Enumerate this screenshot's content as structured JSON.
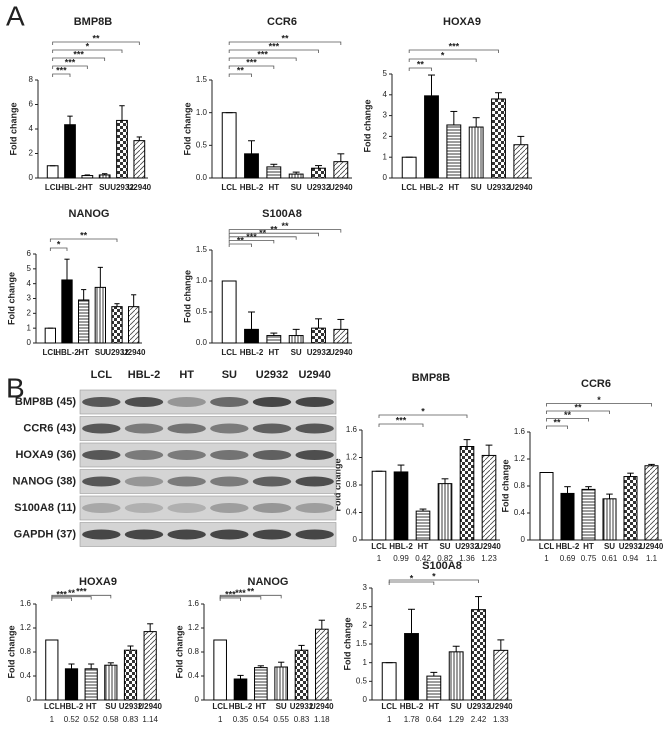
{
  "panel_labels": {
    "a": "A",
    "b": "B"
  },
  "blot": {
    "columns": [
      "LCL",
      "HBL-2",
      "HT",
      "SU",
      "U2932",
      "U2940"
    ],
    "rows": [
      "BMP8B (45)",
      "CCR6 (43)",
      "HOXA9 (36)",
      "NANOG (38)",
      "S100A8 (11)",
      "GAPDH (37)"
    ]
  },
  "chart_data": [
    {
      "type": "bar",
      "title": "BMP8B",
      "ylabel": "Fold change",
      "categories": [
        "LCL",
        "HBL-2",
        "HT",
        "SU",
        "U2932",
        "U2940"
      ],
      "values": [
        1,
        4.35,
        0.2,
        0.25,
        4.7,
        3.05
      ],
      "errors": [
        0,
        0.7,
        0.05,
        0.1,
        1.2,
        0.3
      ],
      "significance": [
        null,
        "***",
        "***",
        "***",
        "*",
        "**"
      ],
      "ylim": [
        0,
        8
      ],
      "yticks": [
        0,
        2,
        4,
        6,
        8
      ]
    },
    {
      "type": "bar",
      "title": "CCR6",
      "ylabel": "Fold change",
      "categories": [
        "LCL",
        "HBL-2",
        "HT",
        "SU",
        "U2932",
        "U2940"
      ],
      "values": [
        1,
        0.37,
        0.17,
        0.06,
        0.15,
        0.25
      ],
      "errors": [
        0,
        0.2,
        0.04,
        0.03,
        0.04,
        0.12
      ],
      "significance": [
        null,
        "**",
        "***",
        "***",
        "***",
        "**"
      ],
      "ylim": [
        0,
        1.5
      ],
      "yticks": [
        {
          "value": 0,
          "label": "0.0"
        },
        0.5,
        {
          "value": 1,
          "label": "1.0"
        },
        1.5
      ]
    },
    {
      "type": "bar",
      "title": "HOXA9",
      "ylabel": "Fold change",
      "categories": [
        "LCL",
        "HBL-2",
        "HT",
        "SU",
        "U2932",
        "U2940"
      ],
      "values": [
        1,
        3.95,
        2.55,
        2.45,
        3.8,
        1.6
      ],
      "errors": [
        0,
        1.0,
        0.65,
        0.45,
        0.3,
        0.4
      ],
      "significance": [
        null,
        "**",
        null,
        "*",
        "***",
        null
      ],
      "ylim": [
        0,
        5
      ],
      "yticks": [
        0,
        1,
        2,
        3,
        4,
        5
      ]
    },
    {
      "type": "bar",
      "title": "NANOG",
      "ylabel": "Fold change",
      "categories": [
        "LCL",
        "HBL-2",
        "HT",
        "SU",
        "U2932",
        "U2940"
      ],
      "values": [
        1,
        4.25,
        2.9,
        3.75,
        2.45,
        2.45
      ],
      "errors": [
        0,
        1.4,
        0.7,
        1.35,
        0.2,
        0.8
      ],
      "significance": [
        null,
        "*",
        null,
        null,
        "**",
        null
      ],
      "ylim": [
        0,
        6
      ],
      "yticks": [
        0,
        1,
        2,
        3,
        4,
        5,
        6
      ]
    },
    {
      "type": "bar",
      "title": "S100A8",
      "ylabel": "Fold change",
      "categories": [
        "LCL",
        "HBL-2",
        "HT",
        "SU",
        "U2932",
        "U2940"
      ],
      "values": [
        1,
        0.22,
        0.12,
        0.12,
        0.24,
        0.22
      ],
      "errors": [
        0,
        0.28,
        0.04,
        0.1,
        0.15,
        0.16
      ],
      "significance": [
        null,
        "**",
        "***",
        "**",
        "**",
        "**"
      ],
      "ylim": [
        0,
        1.5
      ],
      "yticks": [
        {
          "value": 0,
          "label": "0.0"
        },
        0.5,
        {
          "value": 1,
          "label": "1.0"
        },
        1.5
      ]
    },
    {
      "type": "bar",
      "title": "BMP8B",
      "ylabel": "Fold change",
      "categories": [
        "LCL",
        "HBL-2",
        "HT",
        "SU",
        "U2932",
        "U2940"
      ],
      "values": [
        1,
        0.99,
        0.42,
        0.82,
        1.36,
        1.23
      ],
      "errors": [
        0,
        0.1,
        0.03,
        0.07,
        0.1,
        0.15
      ],
      "significance": [
        null,
        null,
        "***",
        null,
        "*",
        null
      ],
      "ylim": [
        0,
        1.6
      ],
      "yticks": [
        0,
        0.4,
        0.8,
        1.2,
        1.6
      ]
    },
    {
      "type": "bar",
      "title": "CCR6",
      "ylabel": "Fold change",
      "categories": [
        "LCL",
        "HBL-2",
        "HT",
        "SU",
        "U2932",
        "U2940"
      ],
      "values": [
        1,
        0.69,
        0.75,
        0.61,
        0.94,
        1.1
      ],
      "errors": [
        0,
        0.1,
        0.04,
        0.07,
        0.05,
        0.02
      ],
      "significance": [
        null,
        "**",
        "**",
        "**",
        null,
        "*"
      ],
      "ylim": [
        0,
        1.6
      ],
      "yticks": [
        0,
        0.4,
        0.8,
        1.2,
        1.6
      ]
    },
    {
      "type": "bar",
      "title": "HOXA9",
      "ylabel": "Fold change",
      "categories": [
        "LCL",
        "HBL-2",
        "HT",
        "SU",
        "U2932",
        "U2940"
      ],
      "values": [
        1,
        0.52,
        0.52,
        0.58,
        0.83,
        1.14
      ],
      "errors": [
        0,
        0.08,
        0.08,
        0.04,
        0.07,
        0.13
      ],
      "significance": [
        null,
        "***",
        "**",
        "***",
        null,
        null
      ],
      "ylim": [
        0,
        1.6
      ],
      "yticks": [
        0,
        0.4,
        0.8,
        1.2,
        1.6
      ]
    },
    {
      "type": "bar",
      "title": "NANOG",
      "ylabel": "Fold change",
      "categories": [
        "LCL",
        "HBL-2",
        "HT",
        "SU",
        "U2932",
        "U2940"
      ],
      "values": [
        1,
        0.35,
        0.54,
        0.55,
        0.83,
        1.18
      ],
      "errors": [
        0,
        0.06,
        0.03,
        0.08,
        0.08,
        0.15
      ],
      "significance": [
        null,
        "***",
        "***",
        "**",
        null,
        null
      ],
      "ylim": [
        0,
        1.6
      ],
      "yticks": [
        0,
        0.4,
        0.8,
        1.2,
        1.6
      ]
    },
    {
      "type": "bar",
      "title": "S100A8",
      "ylabel": "Fold change",
      "categories": [
        "LCL",
        "HBL-2",
        "HT",
        "SU",
        "U2932",
        "U2940"
      ],
      "values": [
        1,
        1.78,
        0.64,
        1.29,
        2.42,
        1.33
      ],
      "errors": [
        0,
        0.65,
        0.1,
        0.15,
        0.35,
        0.28
      ],
      "significance": [
        null,
        null,
        "*",
        null,
        "*",
        null
      ],
      "ylim": [
        0,
        3
      ],
      "yticks": [
        0,
        0.5,
        1,
        1.5,
        2,
        2.5,
        3
      ]
    }
  ]
}
